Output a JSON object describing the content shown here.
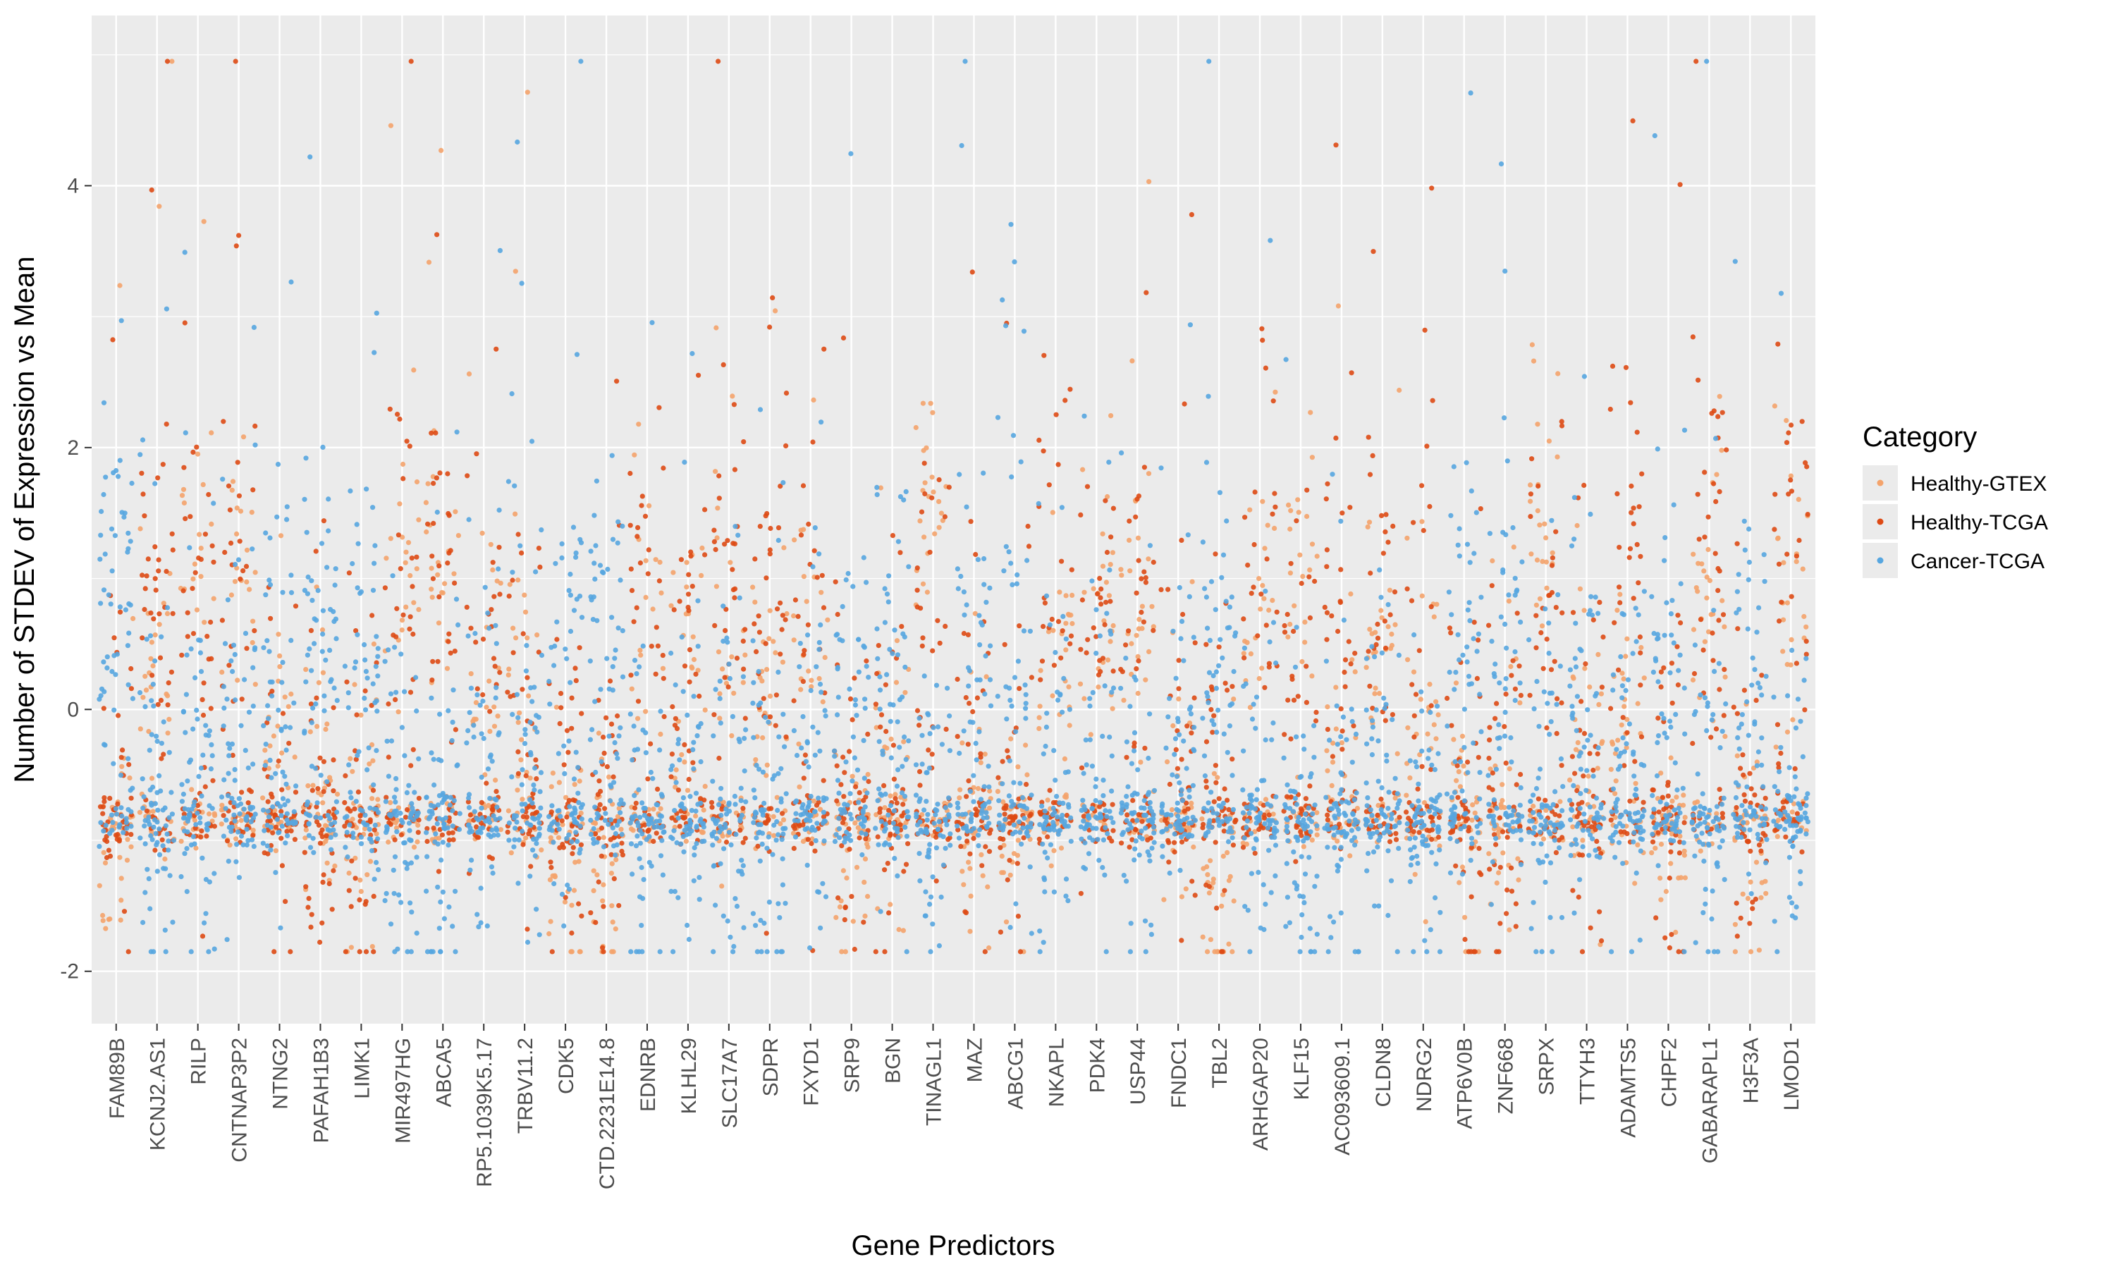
{
  "chart_data": {
    "type": "scatter",
    "subtype": "jittered strip plot",
    "xlabel": "Gene Predictors",
    "ylabel": "Number of STDEV of Expression vs Mean",
    "ylim": [
      -2.4,
      5.3
    ],
    "yticks": [
      -2,
      0,
      2,
      4
    ],
    "grid": true,
    "legend": {
      "title": "Category",
      "position": "right",
      "entries": [
        "Healthy-GTEX",
        "Healthy-TCGA",
        "Cancer-TCGA"
      ]
    },
    "categories": [
      "FAM89B",
      "KCNJ2.AS1",
      "RILP",
      "CNTNAP3P2",
      "NTNG2",
      "PAFAH1B3",
      "LIMK1",
      "MIR497HG",
      "ABCA5",
      "RP5.1039K5.17",
      "TRBV11.2",
      "CDK5",
      "CTD.2231E14.8",
      "EDNRB",
      "KLHL29",
      "SLC17A7",
      "SDPR",
      "FXYD1",
      "SRP9",
      "BGN",
      "TINAGL1",
      "MAZ",
      "ABCG1",
      "NKAPL",
      "PDK4",
      "USP44",
      "FNDC1",
      "TBL2",
      "ARHGAP20",
      "KLF15",
      "AC093609.1",
      "CLDN8",
      "NDRG2",
      "ATP6V0B",
      "ZNF668",
      "SRPX",
      "TTYH3",
      "ADAMTS5",
      "CHPF2",
      "GABARAPL1",
      "H3F3A",
      "LMOD1"
    ],
    "series": [
      {
        "name": "Healthy-GTEX",
        "color": "#F4A36B",
        "values": [
          -1.1,
          0.5,
          1.2,
          0.9,
          -0.4,
          -0.6,
          -0.9,
          1.0,
          1.1,
          0.1,
          0.0,
          -1.2,
          -1.3,
          0.6,
          0.4,
          0.1,
          0.1,
          0.6,
          -1.2,
          -0.6,
          1.5,
          -0.8,
          -0.9,
          0.3,
          0.9,
          0.7,
          -0.5,
          -1.3,
          0.7,
          0.9,
          -0.3,
          0.5,
          -0.2,
          -0.8,
          -0.6,
          1.2,
          -0.4,
          -0.2,
          -1.2,
          0.8,
          -0.9,
          0.8
        ]
      },
      {
        "name": "Healthy-TCGA",
        "color": "#DE4A14",
        "values": [
          -0.6,
          0.9,
          0.7,
          0.8,
          -0.6,
          -0.8,
          -0.9,
          0.9,
          0.9,
          0.0,
          -0.2,
          -0.6,
          -0.8,
          0.9,
          0.6,
          0.9,
          0.8,
          0.5,
          -0.6,
          -0.6,
          0.5,
          -0.5,
          -0.6,
          1.0,
          0.7,
          0.5,
          -0.4,
          -0.5,
          0.9,
          0.6,
          0.7,
          0.8,
          0.6,
          -0.7,
          -0.6,
          0.8,
          -0.3,
          0.9,
          -0.8,
          0.9,
          -0.8,
          1.0
        ]
      },
      {
        "name": "Cancer-TCGA",
        "color": "#56A6E0",
        "values": [
          0.5,
          -0.7,
          -0.6,
          -0.4,
          0.2,
          0.3,
          0.1,
          -0.8,
          -0.7,
          -0.4,
          -0.3,
          0.3,
          0.3,
          -0.8,
          -0.7,
          -0.7,
          -0.7,
          -0.6,
          0.2,
          0.0,
          -0.9,
          0.3,
          0.2,
          -0.7,
          -0.6,
          -0.7,
          -0.1,
          0.3,
          -0.7,
          -0.6,
          -0.7,
          -0.6,
          -0.7,
          0.2,
          0.2,
          -0.7,
          0.0,
          -0.6,
          0.3,
          -0.8,
          0.2,
          -0.8
        ]
      }
    ]
  }
}
